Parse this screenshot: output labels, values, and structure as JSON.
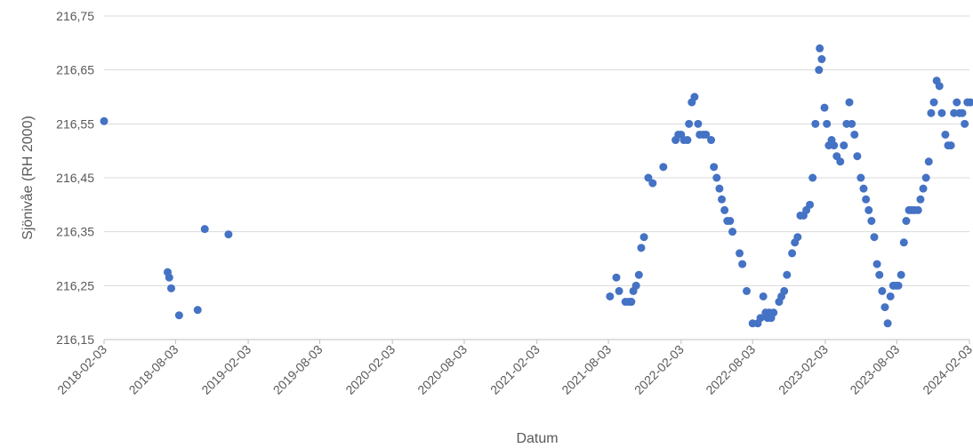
{
  "chart_data": {
    "type": "scatter",
    "xlabel": "Datum",
    "ylabel": "Sjönivåe (RH 2000)",
    "xlim": [
      "2018-02-03",
      "2024-02-03"
    ],
    "xticks": [
      "2018-02-03",
      "2018-08-03",
      "2019-02-03",
      "2019-08-03",
      "2020-02-03",
      "2020-08-03",
      "2021-02-03",
      "2021-08-03",
      "2022-02-03",
      "2022-08-03",
      "2023-02-03",
      "2023-08-03",
      "2024-02-03"
    ],
    "ylim": [
      216.15,
      216.75
    ],
    "yticks": [
      {
        "value": 216.15,
        "label": "216,15"
      },
      {
        "value": 216.25,
        "label": "216,25"
      },
      {
        "value": 216.35,
        "label": "216,35"
      },
      {
        "value": 216.45,
        "label": "216,45"
      },
      {
        "value": 216.55,
        "label": "216,55"
      },
      {
        "value": 216.65,
        "label": "216,65"
      },
      {
        "value": 216.75,
        "label": "216,75"
      }
    ],
    "grid": true,
    "color": "#4472c4",
    "x": [
      "2018-02-03",
      "2018-07-14",
      "2018-07-18",
      "2018-07-23",
      "2018-08-12",
      "2018-09-28",
      "2018-10-16",
      "2018-12-15",
      "2021-08-07",
      "2021-08-23",
      "2021-08-30",
      "2021-09-15",
      "2021-09-24",
      "2021-09-30",
      "2021-10-05",
      "2021-10-12",
      "2021-10-19",
      "2021-10-25",
      "2021-11-01",
      "2021-11-12",
      "2021-11-23",
      "2021-12-20",
      "2022-01-20",
      "2022-01-27",
      "2022-02-03",
      "2022-02-10",
      "2022-02-19",
      "2022-02-23",
      "2022-03-02",
      "2022-03-09",
      "2022-03-18",
      "2022-03-22",
      "2022-03-31",
      "2022-04-07",
      "2022-04-20",
      "2022-04-27",
      "2022-05-04",
      "2022-05-11",
      "2022-05-17",
      "2022-05-24",
      "2022-05-31",
      "2022-06-07",
      "2022-06-13",
      "2022-07-01",
      "2022-07-08",
      "2022-07-19",
      "2022-08-03",
      "2022-08-16",
      "2022-08-23",
      "2022-08-30",
      "2022-09-05",
      "2022-09-10",
      "2022-09-14",
      "2022-09-19",
      "2022-09-25",
      "2022-10-09",
      "2022-10-15",
      "2022-10-22",
      "2022-10-29",
      "2022-11-11",
      "2022-11-18",
      "2022-11-25",
      "2022-12-02",
      "2022-12-10",
      "2022-12-17",
      "2022-12-26",
      "2023-01-02",
      "2023-01-09",
      "2023-01-18",
      "2023-01-20",
      "2023-01-25",
      "2023-02-01",
      "2023-02-07",
      "2023-02-12",
      "2023-02-19",
      "2023-02-25",
      "2023-03-04",
      "2023-03-13",
      "2023-03-22",
      "2023-03-29",
      "2023-04-05",
      "2023-04-11",
      "2023-04-18",
      "2023-04-25",
      "2023-05-04",
      "2023-05-11",
      "2023-05-17",
      "2023-05-24",
      "2023-05-31",
      "2023-06-07",
      "2023-06-14",
      "2023-06-20",
      "2023-06-27",
      "2023-07-04",
      "2023-07-11",
      "2023-07-18",
      "2023-07-25",
      "2023-08-01",
      "2023-08-07",
      "2023-08-14",
      "2023-08-21",
      "2023-08-27",
      "2023-09-03",
      "2023-09-10",
      "2023-09-17",
      "2023-09-26",
      "2023-10-02",
      "2023-10-09",
      "2023-10-16",
      "2023-10-23",
      "2023-10-29",
      "2023-11-05",
      "2023-11-12",
      "2023-11-19",
      "2023-11-25",
      "2023-12-04",
      "2023-12-11",
      "2023-12-18",
      "2023-12-26",
      "2024-01-02",
      "2024-01-09",
      "2024-01-16",
      "2024-01-22",
      "2024-01-29",
      "2024-02-05"
    ],
    "values": [
      216.555,
      216.275,
      216.265,
      216.245,
      216.195,
      216.205,
      216.355,
      216.345,
      216.23,
      216.265,
      216.24,
      216.22,
      216.22,
      216.22,
      216.24,
      216.25,
      216.27,
      216.32,
      216.34,
      216.45,
      216.44,
      216.47,
      216.52,
      216.53,
      216.53,
      216.52,
      216.52,
      216.55,
      216.59,
      216.6,
      216.55,
      216.53,
      216.53,
      216.53,
      216.52,
      216.47,
      216.45,
      216.43,
      216.41,
      216.39,
      216.37,
      216.37,
      216.35,
      216.31,
      216.29,
      216.24,
      216.18,
      216.18,
      216.19,
      216.23,
      216.2,
      216.19,
      216.2,
      216.19,
      216.2,
      216.22,
      216.23,
      216.24,
      216.27,
      216.31,
      216.33,
      216.34,
      216.38,
      216.38,
      216.39,
      216.4,
      216.45,
      216.55,
      216.65,
      216.69,
      216.67,
      216.58,
      216.55,
      216.51,
      216.52,
      216.51,
      216.49,
      216.48,
      216.51,
      216.55,
      216.59,
      216.55,
      216.53,
      216.49,
      216.45,
      216.43,
      216.41,
      216.39,
      216.37,
      216.34,
      216.29,
      216.27,
      216.24,
      216.21,
      216.18,
      216.23,
      216.25,
      216.25,
      216.25,
      216.27,
      216.33,
      216.37,
      216.39,
      216.39,
      216.39,
      216.39,
      216.41,
      216.43,
      216.45,
      216.48,
      216.57,
      216.59,
      216.63,
      216.62,
      216.57,
      216.53,
      216.51,
      216.51,
      216.57,
      216.59,
      216.57,
      216.57,
      216.55,
      216.59,
      216.59
    ]
  }
}
